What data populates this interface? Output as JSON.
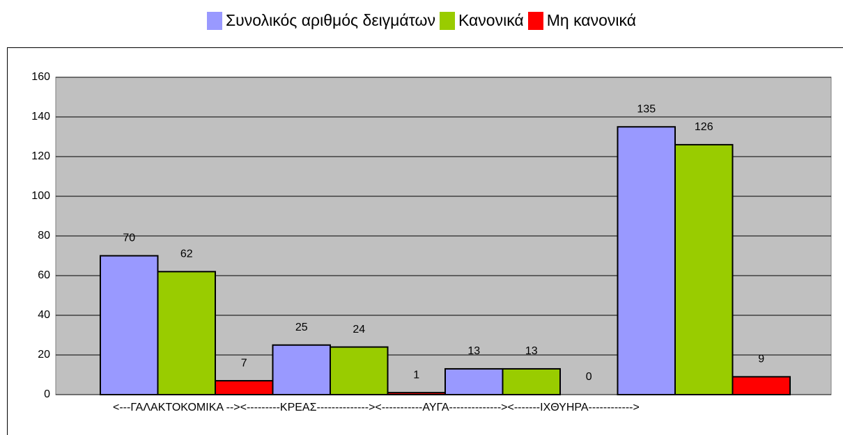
{
  "chart_data": {
    "type": "bar",
    "x_label": "<---ΓΑΛΑΚΤΟΚΟΜΙΚΑ --><---------ΚΡΕΑΣ--------------><-----------ΑΥΓΑ--------------><-------ΙΧΘΥΗΡΑ------------>",
    "categories": [
      null,
      null,
      null,
      null
    ],
    "series": [
      {
        "name": "Συνολικός αριθμός δειγμάτων",
        "color": "#9999ff",
        "values": [
          70,
          25,
          13,
          135
        ]
      },
      {
        "name": "Κανονικά",
        "color": "#99cc00",
        "values": [
          62,
          24,
          13,
          126
        ]
      },
      {
        "name": "Μη κανονικά",
        "color": "#ff0000",
        "values": [
          7,
          1,
          0,
          9
        ]
      }
    ],
    "ylim": [
      0,
      160
    ],
    "yticks": [
      0,
      20,
      40,
      60,
      80,
      100,
      120,
      140,
      160
    ],
    "grid": true,
    "legend": "top"
  }
}
